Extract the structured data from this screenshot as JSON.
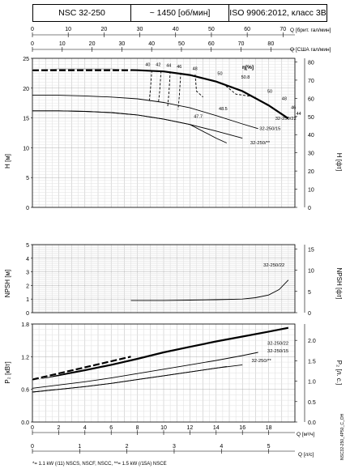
{
  "header": {
    "model": "NSC 32-250",
    "speed": "~ 1450 [об/мин]",
    "standard": "ISO 9906:2012, класс 3В"
  },
  "side_note": "NSC32-250_4P50_C_OH",
  "footnote": "*= 1.1 kW (/11) NSCS, NSCF, NSCC, **= 1.5 kW (/15A) NSCE",
  "axes": {
    "q_uk_label": "Q [брит. гал/мин]",
    "q_us_label": "Q [США гал/мин]",
    "q_m3h_label": "Q [м³/ч]",
    "q_ls_label": "Q [л/с]",
    "h_m_label": "H [м]",
    "h_ft_label": "H [фт]",
    "npsh_m_label": "NPSH [м]",
    "npsh_ft_label": "NPSH [фт]",
    "p_kw_label": "P₂ [кВт]",
    "p_hp_label": "P₂ [л. с.]"
  },
  "eta_label": "η[%]",
  "chart_data": [
    {
      "type": "line",
      "name": "H-Q",
      "x_units": "m3/h",
      "xlim": [
        0,
        20
      ],
      "ylim": [
        0,
        25
      ],
      "y2lim": [
        0,
        82
      ],
      "grid": true,
      "series": [
        {
          "name": "",
          "style": "thick",
          "x": [
            0,
            2,
            4,
            6,
            8,
            10,
            12,
            14,
            16,
            18,
            19.5
          ],
          "y": [
            23.0,
            23.1,
            23.1,
            23.1,
            23.0,
            22.8,
            22.2,
            21.1,
            19.5,
            17.1,
            14.9
          ]
        },
        {
          "name": "32-250/22",
          "x": [
            0,
            2,
            4,
            6,
            8,
            10,
            12,
            14,
            16,
            17.2
          ],
          "y": [
            18.8,
            18.8,
            18.7,
            18.5,
            18.2,
            17.6,
            16.7,
            15.4,
            14.0,
            13.2
          ]
        },
        {
          "name": "32-250/15",
          "x": [
            0,
            2,
            4,
            6,
            8,
            10,
            12,
            14,
            16
          ],
          "y": [
            16.2,
            16.2,
            16.1,
            15.9,
            15.5,
            14.8,
            13.9,
            12.8,
            11.6
          ]
        },
        {
          "name": "32-250/**",
          "x": [
            0,
            2,
            4,
            6,
            8,
            10,
            12,
            14,
            14.8
          ],
          "y": [
            16.2,
            16.2,
            16.1,
            15.9,
            15.5,
            14.8,
            13.9,
            11.6,
            10.8
          ]
        }
      ],
      "efficiency_labels": [
        "40",
        "42",
        "44",
        "46",
        "48",
        "50",
        "50.8",
        "50",
        "48",
        "46",
        "44",
        "48.5",
        "47.7"
      ],
      "series_labels": [
        "32-250/22",
        "32-250/15",
        "32-250/**"
      ]
    },
    {
      "type": "line",
      "name": "NPSH-Q",
      "x_units": "m3/h",
      "xlim": [
        0,
        20
      ],
      "ylim": [
        0,
        5
      ],
      "y2lim": [
        0,
        16
      ],
      "series": [
        {
          "name": "32-250/22",
          "x": [
            7.5,
            10,
            12,
            14,
            16,
            17,
            18,
            18.8,
            19.5
          ],
          "y": [
            0.9,
            0.9,
            0.92,
            0.95,
            1.0,
            1.1,
            1.3,
            1.7,
            2.4
          ]
        }
      ]
    },
    {
      "type": "line",
      "name": "P2-Q",
      "x_units": "m3/h",
      "xlim": [
        0,
        20
      ],
      "ylim": [
        0,
        1.8
      ],
      "y2lim": [
        0,
        2.4
      ],
      "series": [
        {
          "name": "",
          "style": "thick",
          "x": [
            0,
            2,
            4,
            6,
            8,
            10,
            12,
            14,
            16,
            18,
            19.5
          ],
          "y": [
            0.78,
            0.86,
            0.95,
            1.05,
            1.16,
            1.28,
            1.38,
            1.48,
            1.57,
            1.66,
            1.73
          ]
        },
        {
          "name": "32-250/22",
          "x": [
            0,
            2,
            4,
            6,
            8,
            10,
            12,
            14,
            16,
            17.2
          ],
          "y": [
            0.62,
            0.68,
            0.74,
            0.81,
            0.89,
            0.97,
            1.05,
            1.13,
            1.22,
            1.28
          ]
        },
        {
          "name": "32-250/15",
          "x": [
            0,
            2,
            4,
            6,
            8,
            10,
            12,
            14,
            16
          ],
          "y": [
            0.55,
            0.6,
            0.65,
            0.71,
            0.78,
            0.85,
            0.92,
            0.99,
            1.05
          ]
        },
        {
          "name": "32-250/**",
          "x": [
            0,
            2,
            4,
            6,
            8,
            10,
            12,
            14,
            14.8
          ],
          "y": [
            0.55,
            0.6,
            0.65,
            0.71,
            0.78,
            0.85,
            0.92,
            0.99,
            1.02
          ]
        }
      ],
      "series_labels": [
        "32-250/22",
        "32-250/15",
        "32-250/**"
      ]
    }
  ]
}
